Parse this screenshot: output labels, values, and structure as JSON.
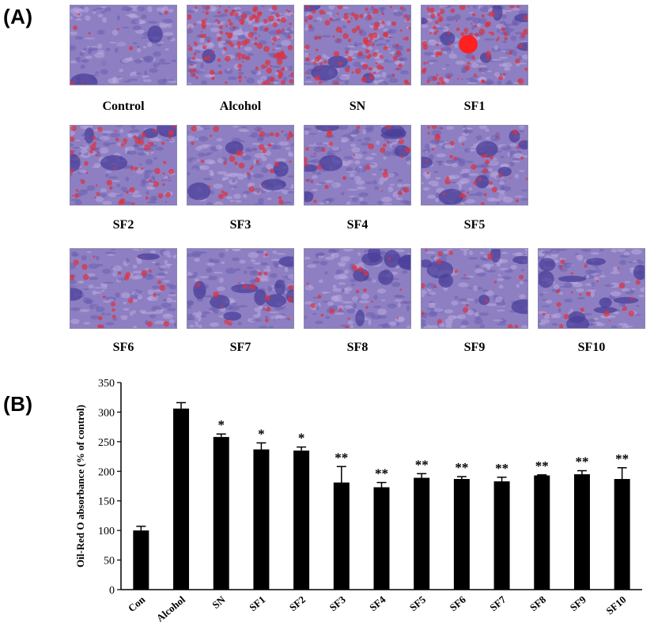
{
  "panel_a": {
    "label": "(A)",
    "images": [
      {
        "caption": "Control",
        "lipid": 0.05,
        "blobs": 0.15
      },
      {
        "caption": "Alcohol",
        "lipid": 0.95,
        "blobs": 0.1
      },
      {
        "caption": "SN",
        "lipid": 0.7,
        "blobs": 0.35
      },
      {
        "caption": "SF1",
        "lipid": 0.55,
        "blobs": 0.5
      },
      {
        "caption": "SF2",
        "lipid": 0.4,
        "blobs": 0.45
      },
      {
        "caption": "SF3",
        "lipid": 0.25,
        "blobs": 0.3
      },
      {
        "caption": "SF4",
        "lipid": 0.2,
        "blobs": 0.7
      },
      {
        "caption": "SF5",
        "lipid": 0.25,
        "blobs": 0.55
      },
      {
        "caption": "SF6",
        "lipid": 0.15,
        "blobs": 0.2
      },
      {
        "caption": "SF7",
        "lipid": 0.12,
        "blobs": 0.75
      },
      {
        "caption": "SF8",
        "lipid": 0.12,
        "blobs": 0.7
      },
      {
        "caption": "SF9",
        "lipid": 0.12,
        "blobs": 0.6
      },
      {
        "caption": "SF10",
        "lipid": 0.15,
        "blobs": 0.85
      }
    ]
  },
  "panel_b": {
    "label": "(B)"
  },
  "colors": {
    "bar": "#000000",
    "micro_base": "#8e7fc2",
    "micro_dark": "#4a3f9a",
    "micro_lipid": "#e0303a"
  },
  "chart_data": {
    "type": "bar",
    "categories": [
      "Con",
      "Alcohol",
      "SN",
      "SF1",
      "SF2",
      "SF3",
      "SF4",
      "SF5",
      "SF6",
      "SF7",
      "SF8",
      "SF9",
      "SF10"
    ],
    "values": [
      100,
      306,
      258,
      237,
      235,
      181,
      173,
      189,
      187,
      183,
      193,
      195,
      187
    ],
    "errors": [
      7,
      10,
      5,
      11,
      6,
      27,
      8,
      7,
      4,
      7,
      1,
      6,
      19
    ],
    "annotations": [
      "",
      "",
      "*",
      "*",
      "*",
      "**",
      "**",
      "**",
      "**",
      "**",
      "**",
      "**",
      "**"
    ],
    "ylabel": "Oil-Red O absorbance (% of control)",
    "xlabel": "",
    "ylim": [
      0,
      350
    ],
    "yticks": [
      "0",
      "50",
      "100",
      "150",
      "200",
      "250",
      "300",
      "350"
    ],
    "ytick_values": [
      0,
      50,
      100,
      150,
      200,
      250,
      300,
      350
    ],
    "grid": false,
    "legend": "none"
  }
}
